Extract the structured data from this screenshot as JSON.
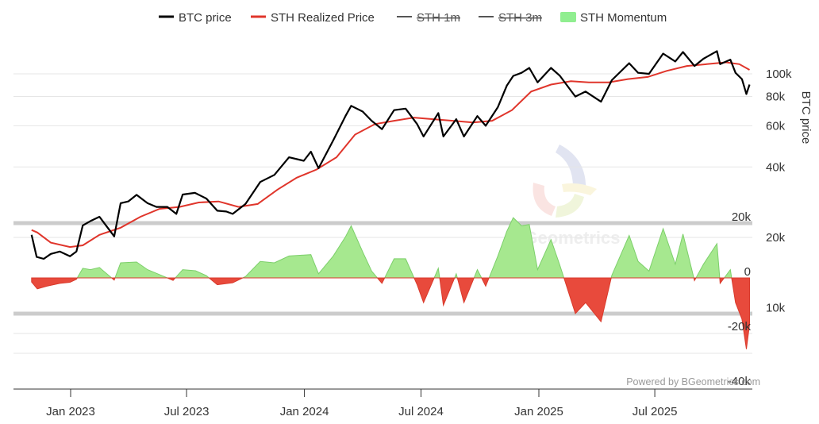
{
  "chart_data": {
    "type": "line",
    "legend": [
      {
        "name": "BTC price",
        "color": "#000000",
        "kind": "line",
        "visible": true
      },
      {
        "name": "STH Realized Price",
        "color": "#e0352b",
        "kind": "line",
        "visible": true
      },
      {
        "name": "STH 1m",
        "color": "#555555",
        "kind": "line",
        "visible": false
      },
      {
        "name": "STH 3m",
        "color": "#555555",
        "kind": "line",
        "visible": false
      },
      {
        "name": "STH Momentum",
        "color": "#90ee90",
        "kind": "area",
        "visible": true
      }
    ],
    "legend_position": "top-center",
    "x_ticks": [
      "Jan 2023",
      "Jul 2023",
      "Jan 2024",
      "Jul 2024",
      "Jan 2025",
      "Jul 2025"
    ],
    "y_right_title": "BTC price",
    "y_right_ticks": [
      "100k",
      "80k",
      "60k",
      "40k",
      "20k",
      "10k"
    ],
    "y_momentum_ticks": [
      "20k",
      "0",
      "-20k",
      "-40k"
    ],
    "y_right_scale": "log",
    "colors": {
      "price": "#000000",
      "sth": "#e0352b",
      "momentum_pos": "#a6e88f",
      "momentum_pos_stroke": "#7ccf6a",
      "momentum_neg": "#e84a3c",
      "band": "#cccccc",
      "grid": "#e6e6e6"
    },
    "series": [
      {
        "name": "BTC price",
        "points": [
          [
            "2022-11-01",
            20500
          ],
          [
            "2022-11-09",
            16500
          ],
          [
            "2022-11-20",
            16200
          ],
          [
            "2022-12-01",
            17000
          ],
          [
            "2022-12-15",
            17400
          ],
          [
            "2022-12-31",
            16600
          ],
          [
            "2023-01-10",
            17400
          ],
          [
            "2023-01-20",
            22500
          ],
          [
            "2023-02-01",
            23500
          ],
          [
            "2023-02-15",
            24500
          ],
          [
            "2023-03-10",
            20200
          ],
          [
            "2023-03-20",
            28000
          ],
          [
            "2023-04-01",
            28500
          ],
          [
            "2023-04-14",
            30400
          ],
          [
            "2023-05-01",
            28000
          ],
          [
            "2023-05-15",
            27000
          ],
          [
            "2023-06-01",
            27000
          ],
          [
            "2023-06-15",
            25200
          ],
          [
            "2023-06-25",
            30500
          ],
          [
            "2023-07-14",
            31000
          ],
          [
            "2023-08-01",
            29300
          ],
          [
            "2023-08-18",
            26000
          ],
          [
            "2023-09-01",
            25800
          ],
          [
            "2023-09-11",
            25200
          ],
          [
            "2023-10-01",
            27800
          ],
          [
            "2023-10-24",
            34500
          ],
          [
            "2023-11-15",
            37000
          ],
          [
            "2023-12-08",
            44000
          ],
          [
            "2023-12-31",
            42500
          ],
          [
            "2024-01-11",
            46500
          ],
          [
            "2024-01-23",
            39500
          ],
          [
            "2024-02-15",
            52000
          ],
          [
            "2024-03-05",
            66000
          ],
          [
            "2024-03-14",
            73000
          ],
          [
            "2024-04-01",
            69000
          ],
          [
            "2024-04-15",
            63000
          ],
          [
            "2024-05-01",
            58000
          ],
          [
            "2024-05-20",
            70000
          ],
          [
            "2024-06-07",
            71000
          ],
          [
            "2024-06-25",
            61000
          ],
          [
            "2024-07-05",
            54000
          ],
          [
            "2024-07-28",
            68000
          ],
          [
            "2024-08-05",
            54000
          ],
          [
            "2024-08-25",
            64000
          ],
          [
            "2024-09-06",
            54000
          ],
          [
            "2024-09-27",
            66000
          ],
          [
            "2024-10-10",
            60000
          ],
          [
            "2024-10-29",
            72000
          ],
          [
            "2024-11-12",
            89000
          ],
          [
            "2024-11-22",
            98000
          ],
          [
            "2024-12-05",
            101000
          ],
          [
            "2024-12-17",
            106000
          ],
          [
            "2024-12-30",
            92000
          ],
          [
            "2025-01-20",
            106000
          ],
          [
            "2025-02-03",
            98000
          ],
          [
            "2025-02-27",
            80000
          ],
          [
            "2025-03-15",
            84000
          ],
          [
            "2025-04-08",
            76000
          ],
          [
            "2025-04-25",
            94000
          ],
          [
            "2025-05-22",
            111000
          ],
          [
            "2025-06-05",
            101000
          ],
          [
            "2025-06-22",
            100000
          ],
          [
            "2025-07-14",
            122000
          ],
          [
            "2025-08-02",
            113000
          ],
          [
            "2025-08-14",
            124000
          ],
          [
            "2025-09-01",
            108000
          ],
          [
            "2025-09-15",
            116000
          ],
          [
            "2025-10-06",
            125000
          ],
          [
            "2025-10-11",
            110000
          ],
          [
            "2025-10-27",
            115000
          ],
          [
            "2025-11-04",
            101000
          ],
          [
            "2025-11-14",
            95000
          ],
          [
            "2025-11-21",
            82000
          ],
          [
            "2025-11-26",
            90000
          ]
        ]
      },
      {
        "name": "STH Realized Price",
        "points": [
          [
            "2022-11-01",
            21500
          ],
          [
            "2022-11-10",
            21000
          ],
          [
            "2022-12-01",
            19000
          ],
          [
            "2022-12-31",
            18200
          ],
          [
            "2023-01-20",
            18500
          ],
          [
            "2023-02-15",
            20500
          ],
          [
            "2023-03-20",
            22000
          ],
          [
            "2023-04-20",
            24500
          ],
          [
            "2023-05-20",
            26500
          ],
          [
            "2023-06-20",
            27000
          ],
          [
            "2023-07-20",
            28200
          ],
          [
            "2023-08-20",
            28500
          ],
          [
            "2023-09-20",
            27000
          ],
          [
            "2023-10-20",
            27800
          ],
          [
            "2023-11-20",
            32000
          ],
          [
            "2023-12-20",
            36000
          ],
          [
            "2024-01-20",
            39000
          ],
          [
            "2024-02-20",
            44000
          ],
          [
            "2024-03-20",
            55000
          ],
          [
            "2024-04-20",
            61000
          ],
          [
            "2024-05-20",
            63000
          ],
          [
            "2024-06-20",
            65000
          ],
          [
            "2024-07-20",
            64000
          ],
          [
            "2024-08-20",
            63000
          ],
          [
            "2024-09-20",
            62000
          ],
          [
            "2024-10-20",
            63000
          ],
          [
            "2024-11-20",
            70000
          ],
          [
            "2024-12-20",
            84000
          ],
          [
            "2025-01-20",
            90000
          ],
          [
            "2025-02-20",
            93000
          ],
          [
            "2025-03-20",
            92000
          ],
          [
            "2025-04-20",
            92000
          ],
          [
            "2025-05-20",
            95000
          ],
          [
            "2025-06-20",
            97000
          ],
          [
            "2025-07-20",
            103000
          ],
          [
            "2025-08-20",
            108000
          ],
          [
            "2025-09-20",
            110000
          ],
          [
            "2025-10-20",
            112000
          ],
          [
            "2025-11-10",
            110000
          ],
          [
            "2025-11-26",
            104000
          ]
        ]
      },
      {
        "name": "STH Momentum",
        "points": [
          [
            "2022-11-01",
            -1500
          ],
          [
            "2022-11-10",
            -4000
          ],
          [
            "2022-11-25",
            -3000
          ],
          [
            "2022-12-15",
            -2000
          ],
          [
            "2022-12-31",
            -1600
          ],
          [
            "2023-01-10",
            -500
          ],
          [
            "2023-01-20",
            3500
          ],
          [
            "2023-02-01",
            3000
          ],
          [
            "2023-02-15",
            3800
          ],
          [
            "2023-03-10",
            -800
          ],
          [
            "2023-03-20",
            5500
          ],
          [
            "2023-04-14",
            5800
          ],
          [
            "2023-05-01",
            3000
          ],
          [
            "2023-05-20",
            1200
          ],
          [
            "2023-06-10",
            -900
          ],
          [
            "2023-06-25",
            3000
          ],
          [
            "2023-07-15",
            2600
          ],
          [
            "2023-08-01",
            800
          ],
          [
            "2023-08-18",
            -2500
          ],
          [
            "2023-09-11",
            -1800
          ],
          [
            "2023-10-01",
            500
          ],
          [
            "2023-10-24",
            6000
          ],
          [
            "2023-11-15",
            5500
          ],
          [
            "2023-12-08",
            8000
          ],
          [
            "2024-01-11",
            8500
          ],
          [
            "2024-01-23",
            1500
          ],
          [
            "2024-02-15",
            8000
          ],
          [
            "2024-03-05",
            15000
          ],
          [
            "2024-03-14",
            19000
          ],
          [
            "2024-04-01",
            9500
          ],
          [
            "2024-04-15",
            2500
          ],
          [
            "2024-05-01",
            -2000
          ],
          [
            "2024-05-20",
            7000
          ],
          [
            "2024-06-07",
            7000
          ],
          [
            "2024-06-25",
            -2500
          ],
          [
            "2024-07-05",
            -9000
          ],
          [
            "2024-07-28",
            3500
          ],
          [
            "2024-08-05",
            -10000
          ],
          [
            "2024-08-25",
            1500
          ],
          [
            "2024-09-06",
            -9000
          ],
          [
            "2024-09-27",
            3000
          ],
          [
            "2024-10-10",
            -3000
          ],
          [
            "2024-10-29",
            8000
          ],
          [
            "2024-11-12",
            17000
          ],
          [
            "2024-11-22",
            22000
          ],
          [
            "2024-12-05",
            19000
          ],
          [
            "2024-12-17",
            19500
          ],
          [
            "2024-12-30",
            3000
          ],
          [
            "2025-01-20",
            14000
          ],
          [
            "2025-02-03",
            4500
          ],
          [
            "2025-02-27",
            -13000
          ],
          [
            "2025-03-15",
            -9000
          ],
          [
            "2025-04-08",
            -16000
          ],
          [
            "2025-04-25",
            1000
          ],
          [
            "2025-05-22",
            15500
          ],
          [
            "2025-06-05",
            6000
          ],
          [
            "2025-06-22",
            2500
          ],
          [
            "2025-07-14",
            18000
          ],
          [
            "2025-08-02",
            5000
          ],
          [
            "2025-08-14",
            16000
          ],
          [
            "2025-09-01",
            -1000
          ],
          [
            "2025-09-15",
            5000
          ],
          [
            "2025-10-06",
            12500
          ],
          [
            "2025-10-11",
            -2000
          ],
          [
            "2025-10-27",
            3000
          ],
          [
            "2025-11-04",
            -9000
          ],
          [
            "2025-11-14",
            -15000
          ],
          [
            "2025-11-21",
            -26000
          ],
          [
            "2025-11-26",
            -17000
          ]
        ]
      }
    ]
  },
  "credits": "Powered by BGeometrics.com",
  "watermark": "BGeometrics"
}
